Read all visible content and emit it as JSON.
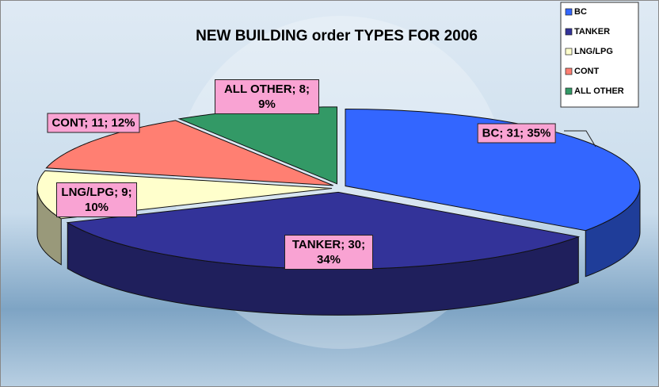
{
  "chart_data": {
    "type": "pie3d",
    "title": "NEW BUILDING order TYPES FOR 2006",
    "categories": [
      "BC",
      "TANKER",
      "LNG/LPG",
      "CONT",
      "ALL OTHER"
    ],
    "values": [
      31,
      30,
      9,
      11,
      8
    ],
    "value_labels": [
      "BC; 31; 35%",
      "TANKER; 30; 34%",
      "LNG/LPG; 9; 10%",
      "CONT; 11; 12%",
      "ALL OTHER; 8; 9%"
    ],
    "colors": [
      "#3366ff",
      "#333399",
      "#ffffcc",
      "#ff7f72",
      "#339966"
    ],
    "legend": "top-right"
  }
}
